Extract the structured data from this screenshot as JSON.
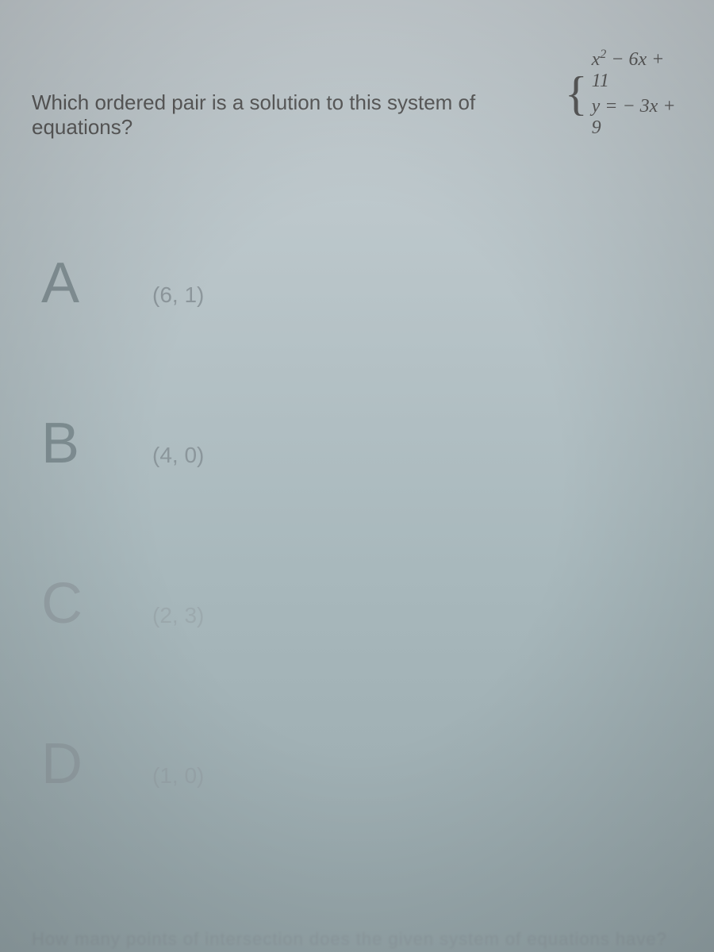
{
  "question": {
    "text": "Which ordered pair is a solution to this system of equations?",
    "equation1_part1": "x",
    "equation1_sup": "2",
    "equation1_part2": " − 6x + 11",
    "equation2": "y = − 3x + 9"
  },
  "options": [
    {
      "letter": "A",
      "value": "(6, 1)"
    },
    {
      "letter": "B",
      "value": "(4, 0)"
    },
    {
      "letter": "C",
      "value": "(2, 3)"
    },
    {
      "letter": "D",
      "value": "(1, 0)"
    }
  ],
  "bottom_text": "How many points of intersection does the given system of equations have?",
  "colors": {
    "background_top": "#c8d0d4",
    "background_bottom": "#98a8ac",
    "text_primary": "#5a5a5a",
    "letter_color": "rgba(110, 125, 130, 0.7)"
  },
  "typography": {
    "question_fontsize": 26,
    "letter_fontsize": 72,
    "value_fontsize": 28,
    "equation_fontsize": 24
  }
}
